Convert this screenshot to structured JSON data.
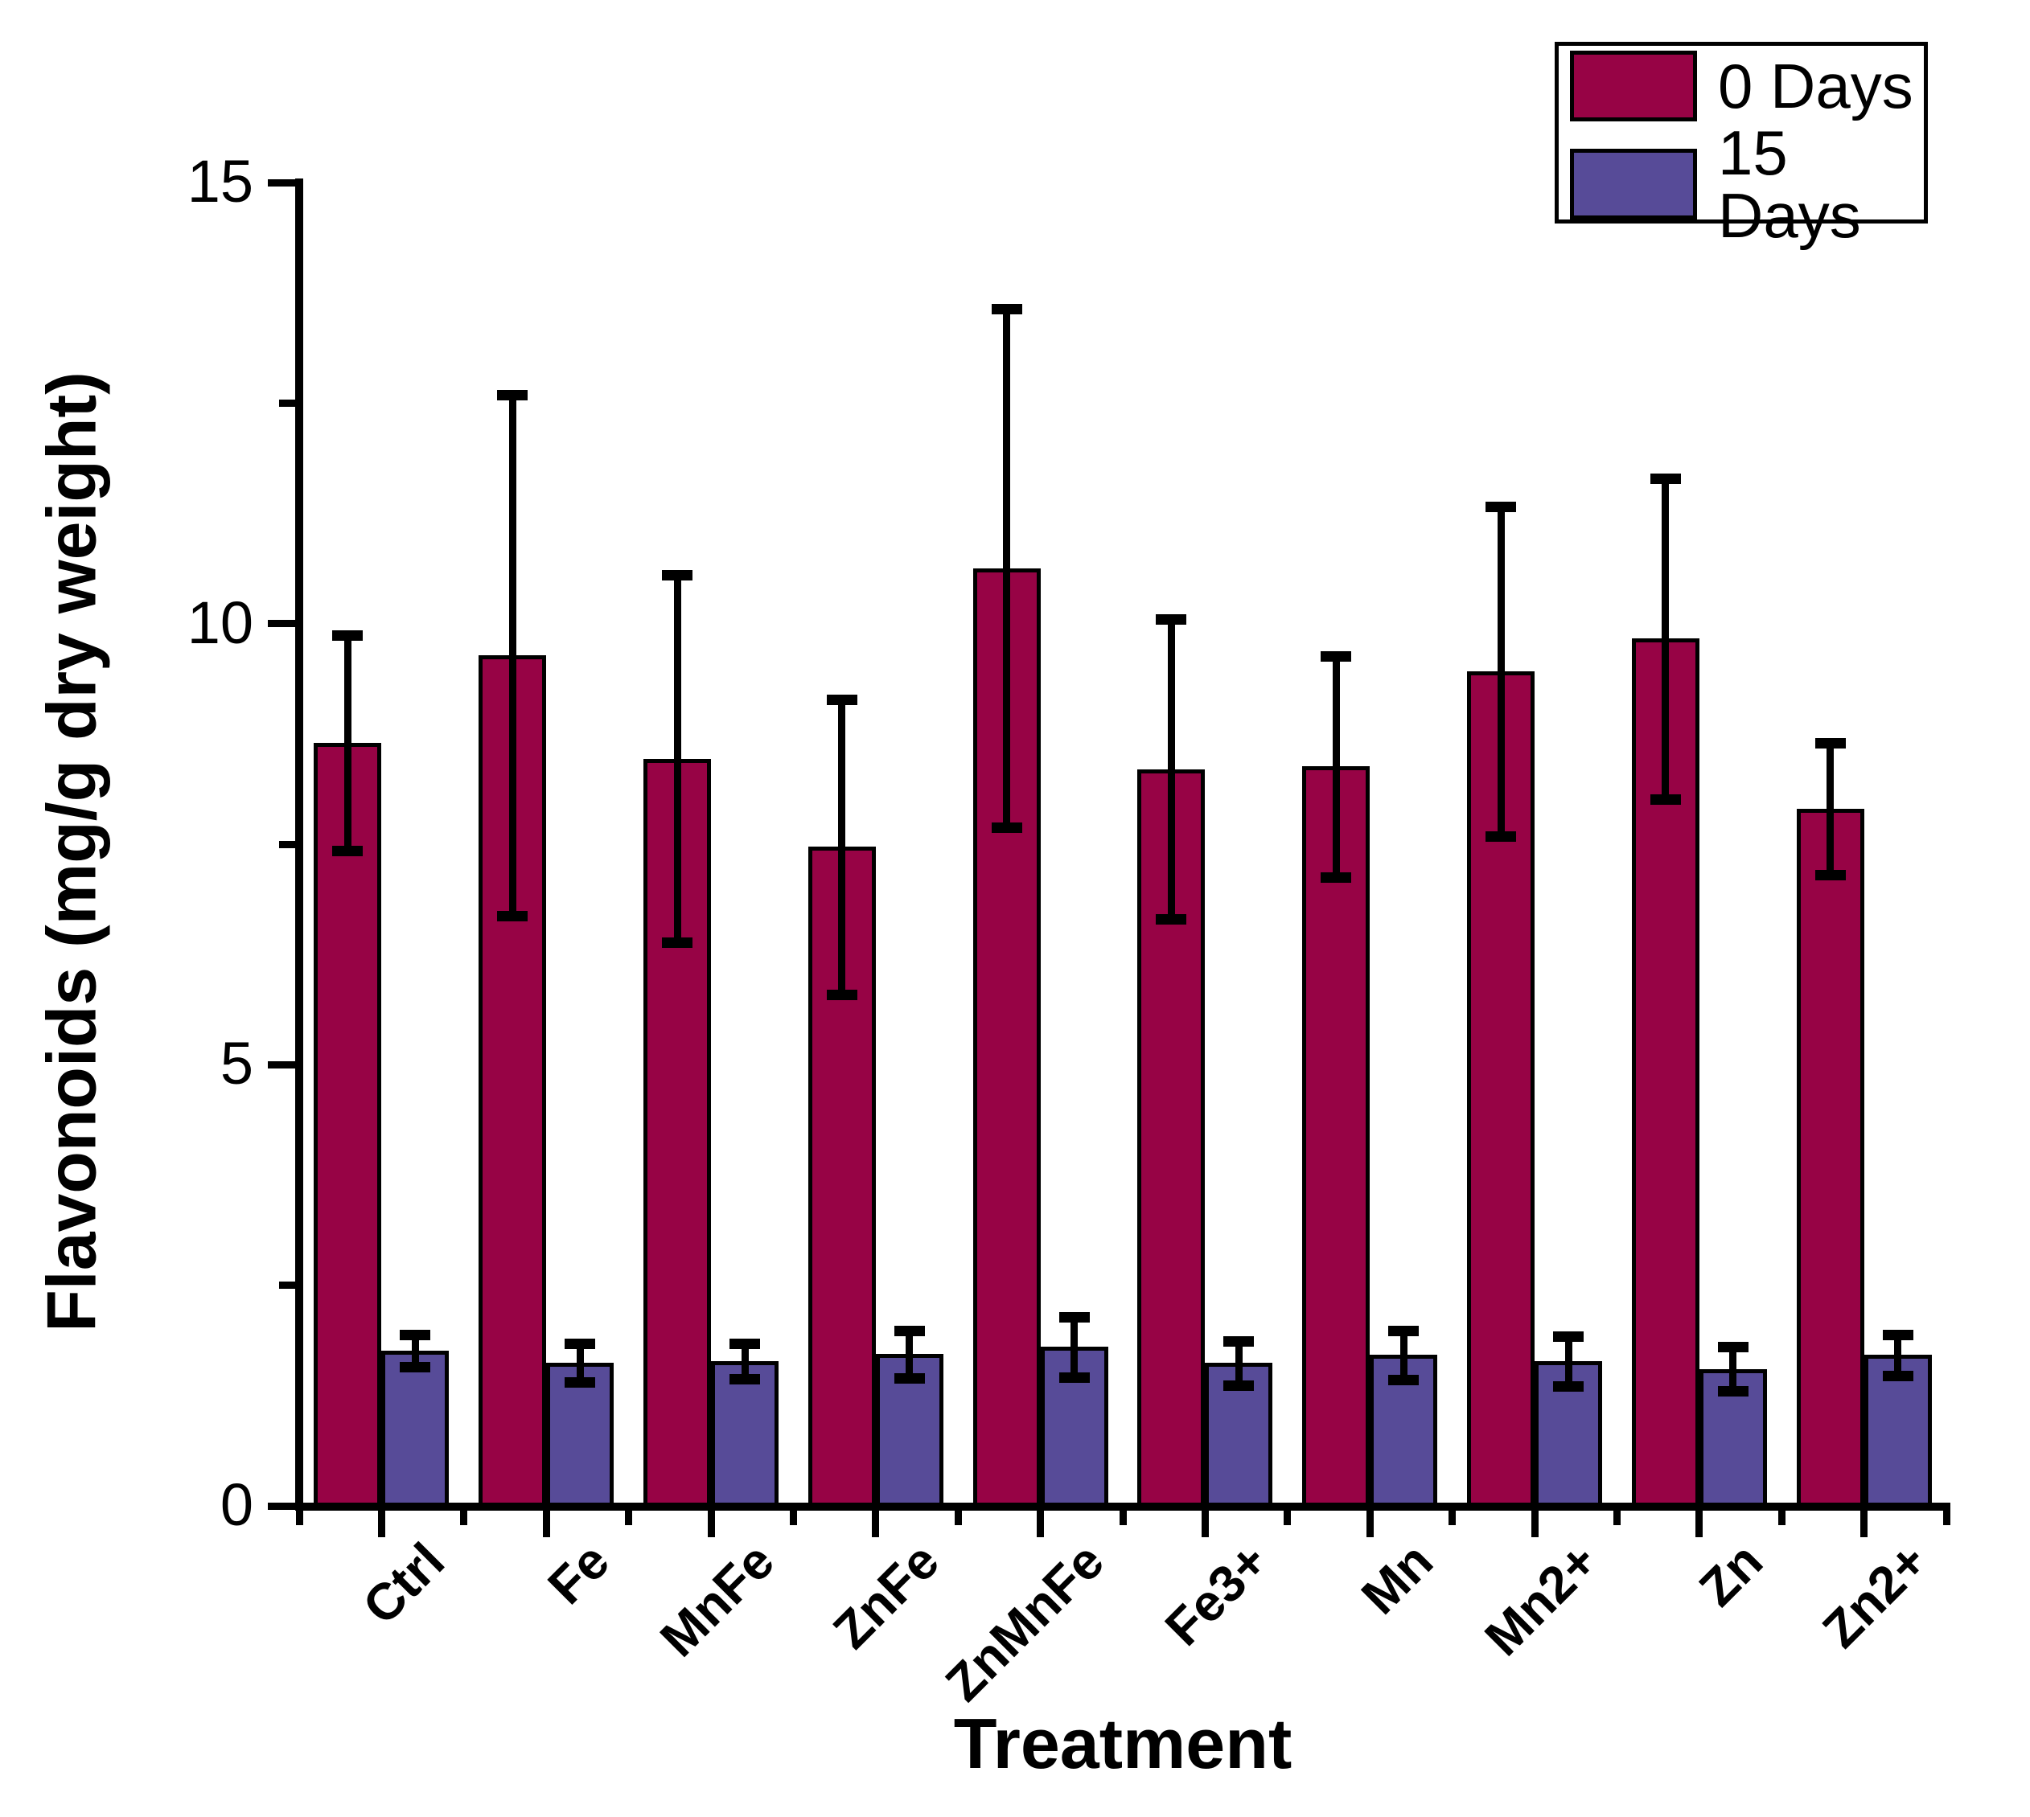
{
  "chart_data": {
    "type": "bar",
    "title": "",
    "xlabel": "Treatment",
    "ylabel": "Flavonoids (mg/g dry weight)",
    "ylim": [
      0,
      15
    ],
    "yticks_major": [
      0,
      5,
      10,
      15
    ],
    "yticks_minor": [
      2.5,
      7.5,
      12.5
    ],
    "y_tick_labels": [
      "0",
      "5",
      "10",
      "15"
    ],
    "grid": false,
    "legend_position": "top-right",
    "error_bars": true,
    "categories": [
      "Ctrl",
      "Fe",
      "MnFe",
      "ZnFe",
      "ZnMnFe",
      "Fe3+",
      "Mn",
      "Mn2+",
      "Zn",
      "Zn2+"
    ],
    "series": [
      {
        "name": "0 Days",
        "color": "#970345",
        "values": [
          8.65,
          9.64,
          8.47,
          7.47,
          10.63,
          8.35,
          8.38,
          9.46,
          9.83,
          7.9
        ],
        "errors": [
          1.22,
          2.95,
          2.08,
          1.67,
          2.94,
          1.7,
          1.25,
          1.87,
          1.82,
          0.75
        ]
      },
      {
        "name": "15 Days",
        "color": "#574B98",
        "values": [
          1.76,
          1.62,
          1.64,
          1.72,
          1.8,
          1.62,
          1.71,
          1.64,
          1.55,
          1.71
        ],
        "errors": [
          0.18,
          0.22,
          0.2,
          0.27,
          0.34,
          0.25,
          0.28,
          0.28,
          0.25,
          0.23
        ]
      }
    ]
  }
}
